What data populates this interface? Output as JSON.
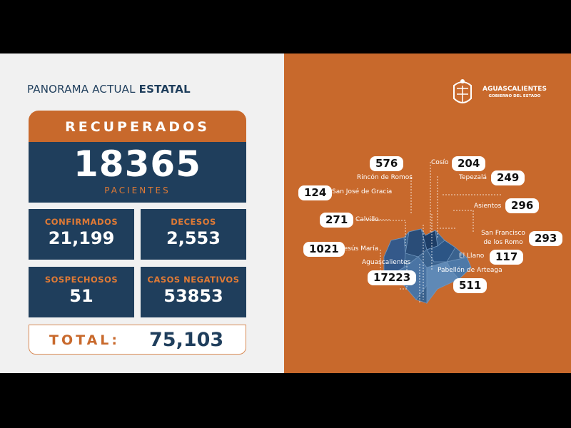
{
  "title": {
    "regular": "PANORAMA ACTUAL",
    "bold": "ESTATAL"
  },
  "recuperados": {
    "label": "RECUPERADOS",
    "value": "18365",
    "unit": "PACIENTES"
  },
  "stats": [
    {
      "label": "CONFIRMADOS",
      "value": "21,199"
    },
    {
      "label": "DECESOS",
      "value": "2,553"
    },
    {
      "label": "SOSPECHOSOS",
      "value": "51"
    },
    {
      "label": "CASOS NEGATIVOS",
      "value": "53853"
    }
  ],
  "total": {
    "label": "TOTAL:",
    "value": "75,103"
  },
  "logo": {
    "name": "AGUASCALIENTES",
    "subtitle": "GOBIERNO DEL ESTADO"
  },
  "municipalities": [
    {
      "name": "Rincón de Romos",
      "value": "576"
    },
    {
      "name": "Cosío",
      "value": "204"
    },
    {
      "name": "Tepezalá",
      "value": "249"
    },
    {
      "name": "San José de Gracia",
      "value": "124"
    },
    {
      "name": "Asientos",
      "value": "296"
    },
    {
      "name": "Calvillo",
      "value": "271"
    },
    {
      "name": "San Francisco de los Romo",
      "value": "293"
    },
    {
      "name": "Jesús María",
      "value": "1021"
    },
    {
      "name": "El Llano",
      "value": "117"
    },
    {
      "name": "Aguascalientes",
      "value": "17223"
    },
    {
      "name": "Pabellón de Arteaga",
      "value": "511"
    }
  ],
  "colors": {
    "orange": "#c8692c",
    "navy": "#1f3e5c",
    "background": "#f1f1f1"
  }
}
